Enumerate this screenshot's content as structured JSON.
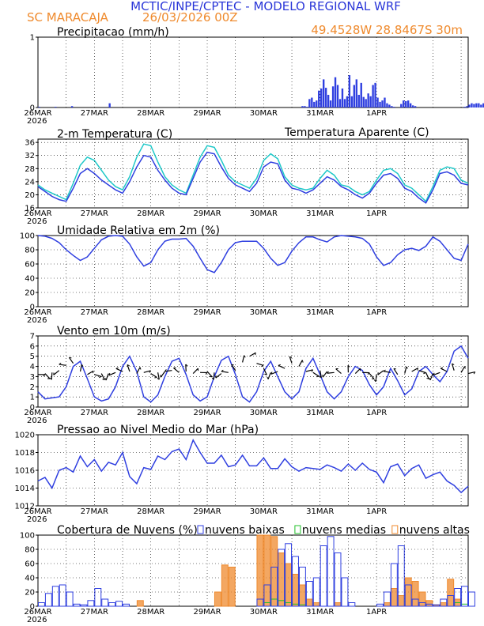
{
  "header": {
    "title": "MCTIC/INPE/CPTEC - MODELO REGIONAL WRF",
    "location": "SC MARACAJA",
    "run": "26/03/2026 00Z",
    "coords": "49.4528W 28.8467S 30m"
  },
  "colors": {
    "title": "#2a36d8",
    "orange": "#ef8a2d",
    "blue": "#2f3fe0",
    "cyan": "#1ec8c8",
    "green": "#22c02a"
  },
  "dates": [
    "26MAR",
    "27MAR",
    "28MAR",
    "29MAR",
    "30MAR",
    "31MAR",
    "1APR"
  ],
  "year": "2026",
  "chart_data": [
    {
      "type": "bar",
      "title": "Precipitacao (mm/h)",
      "ylim": [
        0,
        1
      ],
      "yticks": [
        0,
        1
      ],
      "x_start": 0,
      "x_step": 1,
      "values": [
        0.01,
        0,
        0,
        0,
        0,
        0,
        0,
        0.01,
        0,
        0,
        0,
        0,
        0,
        0,
        0.02,
        0,
        0,
        0,
        0,
        0,
        0,
        0,
        0,
        0,
        0,
        0,
        0,
        0,
        0,
        0,
        0.06,
        0,
        0,
        0,
        0,
        0,
        0,
        0,
        0,
        0,
        0,
        0,
        0,
        0,
        0,
        0,
        0,
        0,
        0,
        0,
        0,
        0,
        0,
        0,
        0,
        0,
        0,
        0,
        0,
        0,
        0,
        0,
        0,
        0,
        0,
        0,
        0,
        0,
        0,
        0,
        0,
        0,
        0,
        0,
        0,
        0,
        0,
        0,
        0,
        0,
        0,
        0,
        0,
        0,
        0,
        0,
        0,
        0,
        0,
        0,
        0,
        0,
        0,
        0,
        0,
        0,
        0,
        0,
        0,
        0,
        0,
        0,
        0,
        0,
        0,
        0,
        0,
        0,
        0,
        0,
        0,
        0,
        0.02,
        0.02,
        0.01,
        0.12,
        0.14,
        0.08,
        0.1,
        0.24,
        0.27,
        0.4,
        0.28,
        0.18,
        0.1,
        0.3,
        0.43,
        0.32,
        0.12,
        0.27,
        0.12,
        0.16,
        0.46,
        0.16,
        0.32,
        0.4,
        0.18,
        0.35,
        0.15,
        0.12,
        0.2,
        0.16,
        0.32,
        0.35,
        0.14,
        0.08,
        0.1,
        0.14,
        0.06,
        0.04,
        0.02,
        0.01,
        0,
        0,
        0.05,
        0.1,
        0.09,
        0.1,
        0.06,
        0.03,
        0.02,
        0,
        0,
        0,
        0,
        0,
        0,
        0,
        0,
        0,
        0,
        0,
        0,
        0,
        0,
        0,
        0,
        0,
        0,
        0,
        0,
        0.01,
        0.02,
        0.04,
        0.06,
        0.05,
        0.06,
        0.06,
        0.04,
        0.06,
        0.03,
        0.01
      ],
      "ylabel": "mm/h"
    },
    {
      "type": "line",
      "title": "2-m Temperatura (C)",
      "legend": "Temperatura Aparente (C)",
      "ylim": [
        16,
        37
      ],
      "yticks": [
        16,
        20,
        24,
        28,
        32,
        36
      ],
      "series": [
        {
          "name": "2-m Temperatura (C)",
          "x_start": 0,
          "x_step": 3,
          "values": [
            22.5,
            21,
            19.5,
            18.5,
            18,
            22,
            26.5,
            28,
            26.5,
            24.5,
            23,
            21.5,
            20.5,
            24,
            28.5,
            32,
            31.5,
            27.5,
            24.5,
            22,
            20.5,
            20,
            25,
            30,
            33,
            32.5,
            28.5,
            25,
            23,
            22,
            21,
            23.5,
            28.5,
            30,
            29.5,
            24.5,
            22,
            21.5,
            20.5,
            21.5,
            23.5,
            25.5,
            24.5,
            22.5,
            21.5,
            20,
            19,
            20.5,
            23.5,
            26,
            26.5,
            25,
            22,
            21,
            19,
            17.5,
            21.5,
            26.5,
            27,
            26,
            23.5,
            23
          ]
        },
        {
          "name": "Temperatura Aparente (C)",
          "x_start": 0,
          "x_step": 3,
          "values": [
            23,
            21.5,
            20.5,
            19.5,
            18.5,
            23.5,
            29,
            31.5,
            30.5,
            27.5,
            24.5,
            22.5,
            21.5,
            25.5,
            31.5,
            35.5,
            35,
            30,
            25.5,
            23,
            21.5,
            20.5,
            26,
            31.5,
            35,
            34.5,
            30.5,
            26,
            24,
            23,
            22,
            25,
            30.5,
            32.5,
            31,
            25.5,
            23,
            22,
            21.5,
            22,
            25,
            27.5,
            26,
            23,
            22.5,
            21,
            20,
            21,
            24.5,
            27.5,
            28,
            26.5,
            23,
            22,
            20,
            18,
            22.5,
            27.5,
            28.5,
            28,
            24.5,
            23.5
          ]
        }
      ]
    },
    {
      "type": "line",
      "title": "Umidade Relativa em 2m (%)",
      "ylim": [
        0,
        100
      ],
      "yticks": [
        0,
        20,
        40,
        60,
        80,
        100
      ],
      "series": [
        {
          "name": "Umidade Relativa em 2m (%)",
          "x_start": 0,
          "x_step": 3,
          "values": [
            100,
            99,
            96,
            90,
            80,
            72,
            65,
            70,
            82,
            94,
            99,
            100,
            99,
            88,
            70,
            57,
            62,
            80,
            92,
            95,
            95,
            96,
            85,
            68,
            52,
            48,
            62,
            80,
            90,
            92,
            92,
            92,
            82,
            68,
            58,
            62,
            78,
            90,
            98,
            98,
            94,
            91,
            98,
            100,
            99,
            98,
            96,
            88,
            70,
            58,
            62,
            73,
            80,
            82,
            79,
            85,
            98,
            92,
            80,
            68,
            65,
            88
          ]
        }
      ]
    },
    {
      "type": "line",
      "title": "Vento em 10m (m/s)",
      "ylim": [
        0,
        7
      ],
      "yticks": [
        0,
        1,
        2,
        3,
        4,
        5,
        6,
        7
      ],
      "series": [
        {
          "name": "Vento em 10m (m/s)",
          "x_start": 0,
          "x_step": 3,
          "values": [
            1.5,
            0.8,
            0.9,
            1.0,
            2.0,
            4.0,
            4.5,
            2.8,
            1.0,
            0.6,
            0.8,
            2.0,
            4.0,
            5.0,
            3.5,
            1.0,
            0.5,
            1.2,
            3.0,
            4.5,
            4.8,
            3.2,
            1.2,
            0.6,
            1.0,
            3.0,
            4.6,
            5.0,
            3.2,
            1.0,
            0.5,
            1.5,
            3.5,
            4.5,
            3.0,
            1.5,
            0.8,
            1.5,
            3.8,
            4.8,
            3.2,
            1.5,
            0.8,
            1.5,
            3.0,
            4.0,
            3.6,
            2.2,
            1.2,
            2.0,
            3.8,
            2.6,
            1.2,
            1.8,
            3.5,
            4.0,
            3.2,
            2.5,
            3.5,
            5.5,
            6.0,
            4.8
          ]
        },
        {
          "name": "wind-barbs",
          "x_start": 0,
          "x_step": 3,
          "values": [
            3.2,
            3.3,
            3.4,
            3.6,
            4.1,
            4.3,
            3.5,
            3.2,
            3.2,
            3.3,
            3.3,
            3.4,
            3.5,
            3.5,
            3.3,
            3.4,
            3.3,
            3.4,
            3.5,
            3.6,
            3.4,
            3.5,
            3.3,
            3.4,
            3.5,
            3.4,
            3.3,
            3.4,
            3.6,
            4.4,
            5.0,
            4.3,
            3.8,
            3.4,
            3.5,
            3.8,
            4.3,
            4.0,
            3.5,
            3.4,
            3.6,
            3.5,
            3.4,
            3.3,
            3.4,
            3.3,
            3.4,
            3.3,
            3.2,
            3.6,
            3.4,
            3.2,
            3.3,
            3.5,
            3.6,
            3.4,
            3.3,
            3.4,
            3.5,
            3.6,
            3.4,
            3.3
          ]
        }
      ]
    },
    {
      "type": "line",
      "title": "Pressao ao Nivel Medio do Mar (hPa)",
      "ylim": [
        1012,
        1020
      ],
      "yticks": [
        1012,
        1014,
        1016,
        1018,
        1020
      ],
      "series": [
        {
          "name": "Pressao ao Nivel Medio do Mar (hPa)",
          "x_start": 0,
          "x_step": 3,
          "values": [
            1014.8,
            1015.2,
            1014,
            1016,
            1016.3,
            1015.8,
            1017.6,
            1016.4,
            1017.2,
            1015.9,
            1016.9,
            1016.6,
            1018,
            1015.3,
            1014.5,
            1016.3,
            1016.1,
            1017.6,
            1017.2,
            1018.1,
            1018.4,
            1017.2,
            1019.4,
            1018,
            1016.8,
            1016.8,
            1017.7,
            1016.4,
            1016.6,
            1017.7,
            1016.5,
            1016.5,
            1017.4,
            1016.2,
            1016.2,
            1017.3,
            1016.4,
            1015.9,
            1016.3,
            1016.2,
            1016.1,
            1016.6,
            1016.3,
            1015.9,
            1016.7,
            1016,
            1016.8,
            1016.1,
            1015.8,
            1014.6,
            1016.4,
            1016.7,
            1015.4,
            1016.2,
            1016.6,
            1015.1,
            1015.5,
            1015.8,
            1014.8,
            1014.3,
            1013.5,
            1014.2
          ]
        }
      ]
    },
    {
      "type": "bar",
      "title": "Cobertura de Nuvens (%)",
      "legend": [
        "nuvens baixas",
        "nuvens medias",
        "nuvens altas"
      ],
      "ylim": [
        0,
        100
      ],
      "yticks": [
        0,
        20,
        40,
        60,
        80,
        100
      ],
      "x_start": 0,
      "x_step": 3,
      "series": [
        {
          "name": "nuvens baixas",
          "values": [
            5,
            18,
            28,
            30,
            20,
            3,
            2,
            8,
            25,
            10,
            5,
            7,
            3,
            0,
            0,
            0,
            0,
            0,
            0,
            0,
            0,
            0,
            0,
            0,
            0,
            0,
            0,
            0,
            0,
            0,
            0,
            10,
            30,
            55,
            80,
            88,
            70,
            55,
            35,
            40,
            85,
            98,
            75,
            40,
            5,
            0,
            0,
            0,
            3,
            20,
            60,
            85,
            30,
            10,
            5,
            3,
            2,
            10,
            15,
            25,
            28,
            20
          ]
        },
        {
          "name": "nuvens medias",
          "values": [
            0,
            0,
            0,
            0,
            0,
            0,
            0,
            0,
            0,
            0,
            0,
            0,
            0,
            0,
            0,
            0,
            0,
            0,
            0,
            0,
            0,
            0,
            0,
            0,
            0,
            0,
            0,
            0,
            0,
            0,
            0,
            0,
            5,
            10,
            8,
            5,
            3,
            2,
            0,
            0,
            0,
            0,
            0,
            0,
            0,
            0,
            0,
            0,
            0,
            0,
            0,
            0,
            0,
            0,
            0,
            0,
            0,
            0,
            0,
            5,
            3,
            0
          ]
        },
        {
          "name": "nuvens altas",
          "values": [
            0,
            0,
            0,
            0,
            0,
            0,
            0,
            0,
            0,
            0,
            0,
            0,
            0,
            0,
            8,
            0,
            0,
            0,
            0,
            0,
            0,
            0,
            0,
            0,
            0,
            20,
            58,
            55,
            0,
            0,
            0,
            100,
            100,
            98,
            75,
            60,
            45,
            30,
            10,
            5,
            0,
            0,
            5,
            0,
            0,
            0,
            0,
            0,
            0,
            5,
            25,
            15,
            40,
            35,
            20,
            8,
            2,
            5,
            38,
            10,
            0,
            0
          ]
        }
      ]
    }
  ]
}
